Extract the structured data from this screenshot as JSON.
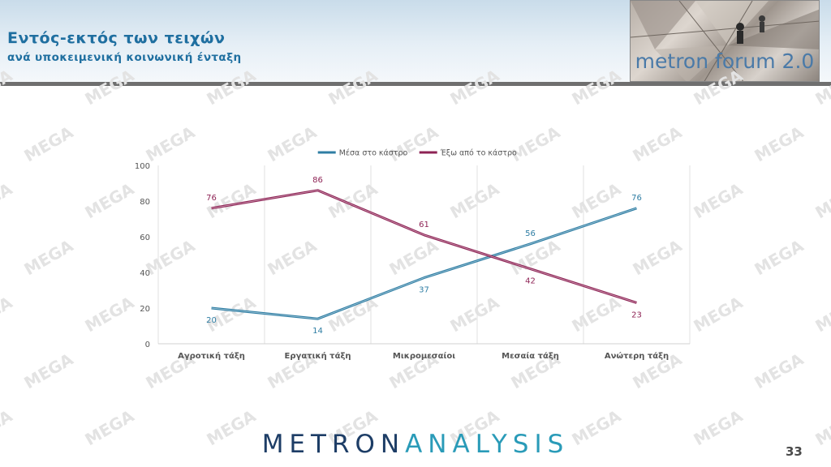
{
  "header": {
    "title": "Εντός-εκτός των τειχών",
    "subtitle": "ανά υποκειμενική κοινωνική ένταξη",
    "forum_label": "metron forum 2.0"
  },
  "watermark": {
    "text": "MEGA"
  },
  "brand": {
    "part1": "METRON",
    "part2": "ANALYSIS"
  },
  "page": {
    "number": "33"
  },
  "chart_data": {
    "type": "line",
    "categories": [
      "Αγροτική τάξη",
      "Εργατική τάξη",
      "Μικρομεσαίοι",
      "Μεσαία τάξη",
      "Ανώτερη τάξη"
    ],
    "series": [
      {
        "name": "Μέσα στο κάστρο",
        "values": [
          20,
          14,
          37,
          56,
          76
        ],
        "color": "#2f7ea4"
      },
      {
        "name": "Έξω από το κάστρο",
        "values": [
          76,
          86,
          61,
          42,
          23
        ],
        "color": "#8e2355"
      }
    ],
    "ylim": [
      0,
      100
    ],
    "yticks": [
      0,
      20,
      40,
      60,
      80,
      100
    ],
    "grid": "vertical",
    "legend": "top"
  }
}
